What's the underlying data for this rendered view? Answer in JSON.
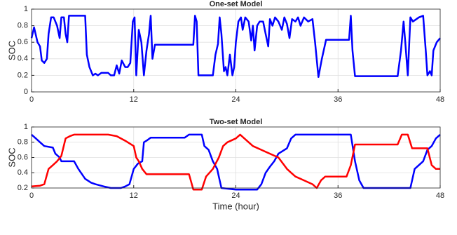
{
  "chart_data": [
    {
      "type": "line",
      "title": "One-set Model",
      "y_label": "SOC",
      "xlim": [
        0,
        48
      ],
      "xticks": [
        0,
        12,
        24,
        36,
        48
      ],
      "ylim": [
        0,
        1
      ],
      "yticks": [
        0,
        0.2,
        0.4,
        0.6,
        0.8,
        1
      ],
      "grid": true,
      "series": [
        {
          "color": "#0000ff",
          "x": [
            0,
            0.3,
            0.7,
            1.0,
            1.2,
            1.5,
            1.8,
            2.0,
            2.3,
            2.6,
            3.0,
            3.3,
            3.5,
            3.8,
            4.0,
            4.2,
            4.4,
            6.3,
            6.5,
            6.8,
            7.2,
            7.5,
            7.8,
            8.2,
            9.0,
            9.3,
            9.7,
            10.0,
            10.3,
            10.6,
            11.0,
            11.3,
            11.6,
            11.9,
            12.1,
            12.3,
            12.6,
            12.9,
            13.2,
            13.5,
            13.8,
            14.0,
            14.2,
            14.5,
            19.0,
            19.2,
            19.4,
            19.6,
            21.3,
            21.6,
            21.9,
            22.1,
            22.3,
            22.6,
            22.8,
            23.0,
            23.3,
            23.6,
            23.8,
            24.0,
            24.3,
            24.6,
            24.8,
            25.1,
            25.5,
            25.8,
            26.0,
            26.2,
            26.5,
            26.8,
            27.2,
            27.5,
            27.8,
            28.0,
            28.3,
            28.6,
            29.0,
            29.4,
            29.7,
            30.0,
            30.3,
            30.6,
            31.0,
            31.3,
            31.6,
            32.0,
            32.5,
            33.0,
            33.3,
            33.7,
            34.1,
            34.6,
            37.3,
            37.5,
            37.7,
            38.0,
            43.0,
            43.4,
            43.7,
            43.9,
            44.2,
            44.5,
            44.8,
            45.5,
            46.0,
            46.3,
            46.5,
            46.8,
            47.0,
            47.2,
            47.6,
            48
          ],
          "values": [
            0.65,
            0.78,
            0.6,
            0.55,
            0.38,
            0.35,
            0.4,
            0.7,
            0.9,
            0.9,
            0.8,
            0.65,
            0.9,
            0.9,
            0.7,
            0.6,
            0.92,
            0.92,
            0.45,
            0.3,
            0.2,
            0.22,
            0.2,
            0.23,
            0.23,
            0.2,
            0.2,
            0.32,
            0.22,
            0.38,
            0.3,
            0.3,
            0.35,
            0.85,
            0.9,
            0.2,
            0.75,
            0.6,
            0.2,
            0.5,
            0.7,
            0.92,
            0.4,
            0.57,
            0.57,
            0.92,
            0.85,
            0.2,
            0.2,
            0.45,
            0.58,
            0.9,
            0.7,
            0.25,
            0.3,
            0.2,
            0.45,
            0.2,
            0.3,
            0.6,
            0.85,
            0.9,
            0.75,
            0.9,
            0.85,
            0.62,
            0.8,
            0.5,
            0.8,
            0.85,
            0.85,
            0.7,
            0.55,
            0.88,
            0.8,
            0.9,
            0.85,
            0.75,
            0.9,
            0.82,
            0.65,
            0.88,
            0.85,
            0.9,
            0.8,
            0.9,
            0.85,
            0.88,
            0.6,
            0.18,
            0.4,
            0.63,
            0.63,
            0.92,
            0.5,
            0.19,
            0.19,
            0.5,
            0.85,
            0.6,
            0.2,
            0.9,
            0.85,
            0.9,
            0.92,
            0.5,
            0.2,
            0.25,
            0.2,
            0.5,
            0.6,
            0.65
          ]
        }
      ]
    },
    {
      "type": "line",
      "title": "Two-set Model",
      "y_label": "SOC",
      "x_label": "Time (hour)",
      "xlim": [
        0,
        48
      ],
      "xticks": [
        0,
        12,
        24,
        36,
        48
      ],
      "ylim": [
        0.2,
        1
      ],
      "yticks": [
        0.2,
        0.4,
        0.6,
        0.8,
        1
      ],
      "grid": true,
      "series": [
        {
          "color": "#0000ff",
          "x": [
            0,
            0.5,
            1,
            1.5,
            2.5,
            2.8,
            3.3,
            3.5,
            5.0,
            5.5,
            6.3,
            7,
            7.5,
            8.5,
            9.3,
            10.5,
            11.0,
            11.5,
            12,
            12.5,
            13,
            13.2,
            13.5,
            14,
            18,
            18.5,
            20.0,
            20.3,
            20.8,
            21.3,
            21.8,
            22,
            22.3,
            24.0,
            26.5,
            27,
            27.5,
            28,
            28.5,
            29,
            30,
            30.5,
            31,
            37.5,
            38,
            38.5,
            39.0,
            44.5,
            45,
            46,
            46.5,
            47,
            47.5,
            48
          ],
          "values": [
            0.9,
            0.85,
            0.8,
            0.75,
            0.73,
            0.65,
            0.6,
            0.55,
            0.55,
            0.45,
            0.32,
            0.27,
            0.25,
            0.22,
            0.2,
            0.2,
            0.22,
            0.25,
            0.45,
            0.52,
            0.55,
            0.8,
            0.82,
            0.86,
            0.86,
            0.9,
            0.9,
            0.75,
            0.7,
            0.55,
            0.45,
            0.35,
            0.2,
            0.18,
            0.18,
            0.25,
            0.4,
            0.48,
            0.55,
            0.65,
            0.72,
            0.85,
            0.9,
            0.9,
            0.55,
            0.3,
            0.2,
            0.2,
            0.45,
            0.55,
            0.7,
            0.75,
            0.85,
            0.9
          ]
        },
        {
          "color": "#ff0000",
          "x": [
            0,
            1,
            1.5,
            2.0,
            2.5,
            3.0,
            3.5,
            4.0,
            4.5,
            5.0,
            9.0,
            10.0,
            11,
            12,
            12.3,
            12.6,
            13,
            13.5,
            18.5,
            19.0,
            20.0,
            20.5,
            21.3,
            22,
            22.5,
            23,
            24,
            24.5,
            25,
            26,
            27,
            28,
            29,
            30,
            30.5,
            31,
            32,
            33,
            33.5,
            34,
            34.5,
            37,
            37.5,
            38,
            43,
            43.5,
            44.2,
            44.7,
            46.5,
            47,
            47.5,
            48
          ],
          "values": [
            0.22,
            0.23,
            0.25,
            0.45,
            0.5,
            0.55,
            0.62,
            0.85,
            0.88,
            0.9,
            0.9,
            0.88,
            0.82,
            0.75,
            0.6,
            0.55,
            0.45,
            0.38,
            0.38,
            0.18,
            0.18,
            0.35,
            0.45,
            0.6,
            0.75,
            0.8,
            0.85,
            0.9,
            0.85,
            0.75,
            0.7,
            0.65,
            0.6,
            0.45,
            0.4,
            0.35,
            0.3,
            0.25,
            0.2,
            0.3,
            0.35,
            0.35,
            0.5,
            0.77,
            0.77,
            0.9,
            0.9,
            0.72,
            0.72,
            0.5,
            0.45,
            0.45
          ]
        }
      ]
    }
  ]
}
